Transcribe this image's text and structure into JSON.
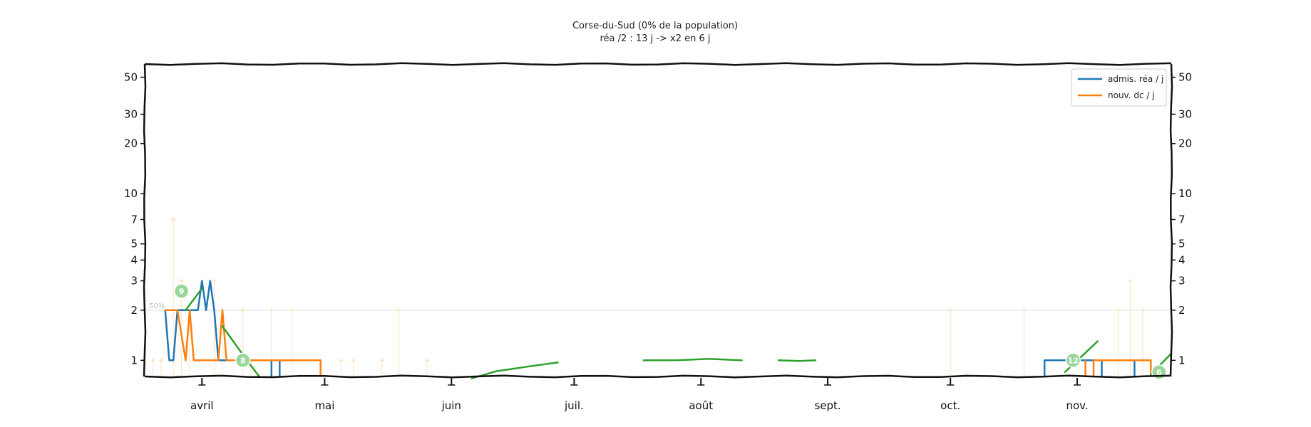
{
  "chart_data": {
    "type": "line",
    "title": "Corse-du-Sud (0% de la population)",
    "subtitle": "réa /2 : 13 j -> x2 en 6 j",
    "y_scale": "log",
    "ylim": [
      0.8,
      60
    ],
    "y_ticks": [
      1,
      2,
      3,
      4,
      5,
      7,
      10,
      20,
      30,
      50
    ],
    "x_range": [
      "2020-03-18",
      "2020-11-24"
    ],
    "month_ticks": [
      {
        "label": "avril",
        "date": "2020-04-01"
      },
      {
        "label": "mai",
        "date": "2020-05-01"
      },
      {
        "label": "juin",
        "date": "2020-06-01"
      },
      {
        "label": "juil.",
        "date": "2020-07-01"
      },
      {
        "label": "août",
        "date": "2020-08-01"
      },
      {
        "label": "sept.",
        "date": "2020-09-01"
      },
      {
        "label": "oct.",
        "date": "2020-10-01"
      },
      {
        "label": "nov.",
        "date": "2020-11-01"
      }
    ],
    "reference_line": {
      "y": 2,
      "label": "50%"
    },
    "legend": {
      "position": "top-right"
    },
    "series": [
      {
        "name": "admis. réa / j",
        "color": "#1f77b4",
        "segments": [
          [
            [
              "2020-03-23",
              2
            ],
            [
              "2020-03-24",
              1
            ],
            [
              "2020-03-25",
              1
            ],
            [
              "2020-03-26",
              2
            ],
            [
              "2020-03-27",
              2
            ],
            [
              "2020-03-28",
              2
            ],
            [
              "2020-03-29",
              2
            ],
            [
              "2020-03-30",
              2
            ],
            [
              "2020-03-31",
              2
            ],
            [
              "2020-04-01",
              3
            ],
            [
              "2020-04-02",
              2
            ],
            [
              "2020-04-03",
              3
            ],
            [
              "2020-04-04",
              2
            ],
            [
              "2020-04-05",
              1
            ],
            [
              "2020-04-06",
              1
            ],
            [
              "2020-04-07",
              1
            ],
            [
              "2020-04-08",
              1
            ]
          ],
          [
            [
              "2020-04-18",
              1
            ],
            [
              "2020-04-18",
              0.8
            ]
          ],
          [
            [
              "2020-04-20",
              1
            ],
            [
              "2020-04-20",
              0.8
            ]
          ],
          [
            [
              "2020-10-24",
              0.8
            ],
            [
              "2020-10-24",
              1
            ],
            [
              "2020-11-02",
              1
            ],
            [
              "2020-11-07",
              1
            ],
            [
              "2020-11-07",
              0.8
            ]
          ],
          [
            [
              "2020-11-15",
              1
            ],
            [
              "2020-11-15",
              0.8
            ]
          ]
        ]
      },
      {
        "name": "nouv. dc / j",
        "color": "#ff7f0e",
        "segments": [
          [
            [
              "2020-03-23",
              2
            ],
            [
              "2020-03-26",
              2
            ],
            [
              "2020-03-28",
              1
            ],
            [
              "2020-03-29",
              2
            ],
            [
              "2020-03-30",
              1
            ],
            [
              "2020-04-05",
              1
            ],
            [
              "2020-04-06",
              2
            ],
            [
              "2020-04-07",
              1
            ],
            [
              "2020-04-30",
              1
            ],
            [
              "2020-04-30",
              0.8
            ]
          ],
          [
            [
              "2020-11-03",
              0.8
            ],
            [
              "2020-11-03",
              1
            ]
          ],
          [
            [
              "2020-11-05",
              0.8
            ],
            [
              "2020-11-05",
              1
            ],
            [
              "2020-11-19",
              1
            ],
            [
              "2020-11-19",
              0.8
            ]
          ]
        ]
      }
    ],
    "trend_lines": [
      {
        "color": "#2ca02c",
        "points": [
          [
            "2020-03-28",
            2
          ],
          [
            "2020-04-01",
            2.7
          ]
        ]
      },
      {
        "color": "#2ca02c",
        "points": [
          [
            "2020-04-06",
            1.6
          ],
          [
            "2020-04-12",
            1
          ],
          [
            "2020-04-15",
            0.8
          ]
        ]
      },
      {
        "color": "#2ca02c",
        "points": [
          [
            "2020-06-06",
            0.78
          ],
          [
            "2020-06-12",
            0.86
          ],
          [
            "2020-06-20",
            0.92
          ],
          [
            "2020-06-27",
            0.97
          ]
        ]
      },
      {
        "color": "#2ca02c",
        "points": [
          [
            "2020-07-18",
            1.0
          ],
          [
            "2020-07-26",
            1.0
          ],
          [
            "2020-08-03",
            1.02
          ],
          [
            "2020-08-11",
            1.0
          ]
        ]
      },
      {
        "color": "#2ca02c",
        "points": [
          [
            "2020-08-20",
            1.0
          ],
          [
            "2020-08-25",
            0.99
          ],
          [
            "2020-08-29",
            1.0
          ]
        ]
      },
      {
        "color": "#2ca02c",
        "points": [
          [
            "2020-10-29",
            0.85
          ],
          [
            "2020-11-06",
            1.3
          ]
        ]
      },
      {
        "color": "#2ca02c",
        "points": [
          [
            "2020-11-19",
            0.82
          ],
          [
            "2020-11-24",
            1.1
          ]
        ]
      }
    ],
    "badges": [
      {
        "label": "9",
        "date": "2020-03-27",
        "y": 2.6
      },
      {
        "label": "8",
        "date": "2020-04-11",
        "y": 1.0
      },
      {
        "label": "12",
        "date": "2020-10-31",
        "y": 1.0
      },
      {
        "label": "6",
        "date": "2020-11-21",
        "y": 0.85
      }
    ],
    "faint_markers": [
      {
        "date": "2020-03-20",
        "y": 1
      },
      {
        "date": "2020-03-22",
        "y": 1
      },
      {
        "date": "2020-03-25",
        "y": 7
      },
      {
        "date": "2020-03-27",
        "y": 3
      },
      {
        "date": "2020-03-29",
        "y": 2
      },
      {
        "date": "2020-04-04",
        "y": 3
      },
      {
        "date": "2020-04-06",
        "y": 2
      },
      {
        "date": "2020-04-11",
        "y": 2
      },
      {
        "date": "2020-04-13",
        "y": 1
      },
      {
        "date": "2020-04-18",
        "y": 2
      },
      {
        "date": "2020-04-23",
        "y": 2
      },
      {
        "date": "2020-05-05",
        "y": 1
      },
      {
        "date": "2020-05-08",
        "y": 1
      },
      {
        "date": "2020-05-15",
        "y": 1
      },
      {
        "date": "2020-05-19",
        "y": 2
      },
      {
        "date": "2020-05-26",
        "y": 1
      },
      {
        "date": "2020-10-01",
        "y": 2
      },
      {
        "date": "2020-10-19",
        "y": 2
      },
      {
        "date": "2020-11-11",
        "y": 2
      },
      {
        "date": "2020-11-14",
        "y": 3
      },
      {
        "date": "2020-11-17",
        "y": 2
      }
    ]
  }
}
